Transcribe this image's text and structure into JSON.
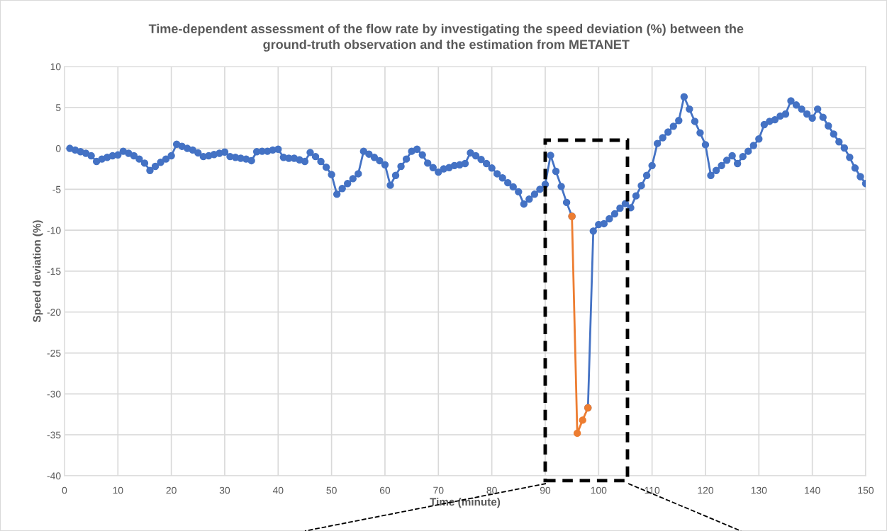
{
  "chart_data": {
    "type": "line",
    "title": "Time-dependent assessment of the flow rate by investigating the speed deviation (%) between the\nground-truth observation and the estimation from METANET",
    "xlabel": "Time (minute)",
    "ylabel": "Speed deviation (%)",
    "x": [
      1,
      2,
      3,
      4,
      5,
      6,
      7,
      8,
      9,
      10,
      11,
      12,
      13,
      14,
      15,
      16,
      17,
      18,
      19,
      20,
      21,
      22,
      23,
      24,
      25,
      26,
      27,
      28,
      29,
      30,
      31,
      32,
      33,
      34,
      35,
      36,
      37,
      38,
      39,
      40,
      41,
      42,
      43,
      44,
      45,
      46,
      47,
      48,
      49,
      50,
      51,
      52,
      53,
      54,
      55,
      56,
      57,
      58,
      59,
      60,
      61,
      62,
      63,
      64,
      65,
      66,
      67,
      68,
      69,
      70,
      71,
      72,
      73,
      74,
      75,
      76,
      77,
      78,
      79,
      80,
      81,
      82,
      83,
      84,
      85,
      86,
      87,
      88,
      89,
      90,
      91,
      92,
      93,
      94,
      95,
      96,
      97,
      98,
      99,
      100,
      101,
      102,
      103,
      104,
      105,
      106,
      107,
      108,
      109,
      110,
      111,
      112,
      113,
      114,
      115,
      116,
      117,
      118,
      119,
      120,
      121,
      122,
      123,
      124,
      125,
      126,
      127,
      128,
      129,
      130,
      131,
      132,
      133,
      134,
      135,
      136,
      137,
      138,
      139,
      140,
      141,
      142,
      143,
      144,
      145,
      146,
      147,
      148,
      149,
      150
    ],
    "series": [
      {
        "color": "#4472c4",
        "values": [
          0,
          -0.2,
          -0.4,
          -0.6,
          -0.9,
          -1.6,
          -1.3,
          -1.1,
          -0.9,
          -0.8,
          -0.35,
          -0.6,
          -0.9,
          -1.3,
          -1.8,
          -2.7,
          -2.2,
          -1.7,
          -1.3,
          -0.9,
          0.5,
          0.25,
          0,
          -0.2,
          -0.55,
          -1,
          -0.9,
          -0.75,
          -0.6,
          -0.45,
          -1,
          -1.1,
          -1.2,
          -1.3,
          -1.5,
          -0.4,
          -0.35,
          -0.35,
          -0.2,
          -0.1,
          -1.1,
          -1.2,
          -1.2,
          -1.4,
          -1.6,
          -0.5,
          -1,
          -1.6,
          -2.3,
          -3.2,
          -5.6,
          -4.9,
          -4.3,
          -3.7,
          -3.1,
          -0.35,
          -0.7,
          -1.1,
          -1.5,
          -2,
          -4.5,
          -3.3,
          -2.2,
          -1.3,
          -0.35,
          -0.1,
          -0.8,
          -1.8,
          -2.35,
          -2.9,
          -2.5,
          -2.35,
          -2.1,
          -2,
          -1.85,
          -0.55,
          -0.9,
          -1.35,
          -1.85,
          -2.4,
          -3.1,
          -3.6,
          -4.2,
          -4.7,
          -5.3,
          -6.8,
          -6.2,
          -5.6,
          -5,
          -4.4,
          -0.85,
          -2.8,
          -4.65,
          -6.6,
          -8.3,
          null,
          null,
          -31.7,
          -10.1,
          -9.3,
          -9.2,
          -8.6,
          -8,
          -7.3,
          -6.75,
          -7.25,
          -5.8,
          -4.55,
          -3.3,
          -2.1,
          0.6,
          1.3,
          2,
          2.7,
          3.4,
          6.3,
          4.8,
          3.3,
          1.9,
          0.45,
          -3.3,
          -2.7,
          -2.1,
          -1.45,
          -0.9,
          -1.85,
          -1,
          -0.35,
          0.35,
          1.15,
          2.9,
          3.3,
          3.5,
          3.95,
          4.2,
          5.8,
          5.3,
          4.8,
          4.2,
          3.7,
          4.8,
          3.8,
          2.75,
          1.75,
          0.8,
          0.05,
          -1.1,
          -2.4,
          -3.45,
          -4.3
        ]
      },
      {
        "color": "#ed7d31",
        "x": [
          95,
          96,
          97,
          98
        ],
        "values": [
          -8.3,
          -34.8,
          -33.2,
          -31.7
        ]
      }
    ],
    "xlim": [
      0,
      150
    ],
    "xticks": [
      0,
      10,
      20,
      30,
      40,
      50,
      60,
      70,
      80,
      90,
      100,
      110,
      120,
      130,
      140,
      150
    ],
    "ylim": [
      -40,
      10
    ],
    "yticks": [
      -40,
      -35,
      -30,
      -25,
      -20,
      -15,
      -10,
      -5,
      0,
      5,
      10
    ],
    "grid": true,
    "marker": "circle",
    "line_style": "solid"
  }
}
